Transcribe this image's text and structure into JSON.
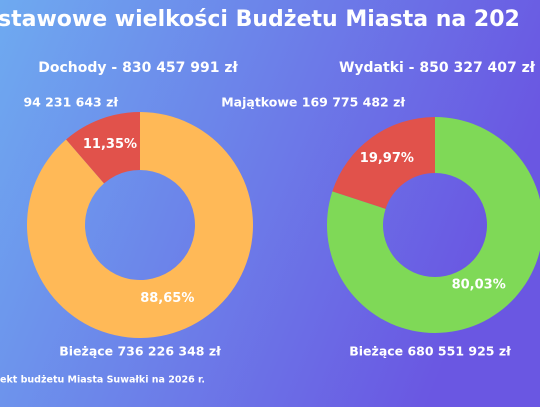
{
  "title": "stawowe wielkości Budżetu Miasta na 202",
  "footer": "ekt budżetu Miasta Suwałki na 2026 r.",
  "chart_data": [
    {
      "type": "pie",
      "title": "Dochody - 830 457 991 zł",
      "categories": [
        "Bieżące 736 226 348 zł",
        "94 231 643 zł"
      ],
      "values": [
        88.65,
        11.35
      ],
      "value_labels": [
        "88,65%",
        "11,35%"
      ],
      "colors": [
        "#ffb957",
        "#e1524b"
      ]
    },
    {
      "type": "pie",
      "title": "Wydatki - 850 327 407 zł",
      "categories": [
        "Bieżące 680 551 925 zł",
        "Majątkowe  169 775 482 zł"
      ],
      "values": [
        80.03,
        19.97
      ],
      "value_labels": [
        "80,03%",
        "19,97%"
      ],
      "colors": [
        "#7fd957",
        "#e1524b"
      ]
    }
  ]
}
